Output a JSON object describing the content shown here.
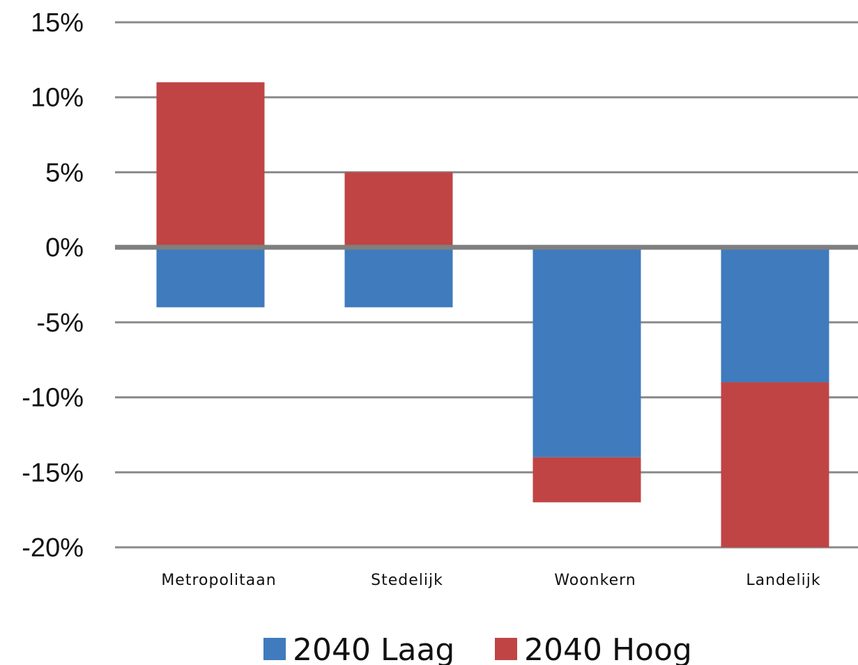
{
  "chart_data": {
    "type": "bar",
    "stacked": true,
    "categories": [
      "Metropolitaan",
      "Stedelijk",
      "Woonkern",
      "Landelijk"
    ],
    "series": [
      {
        "name": "2040 Laag",
        "color": "#3f7bbd",
        "values": [
          -4,
          -4,
          -14,
          -9
        ]
      },
      {
        "name": "2040 Hoog",
        "color": "#c04444",
        "values": [
          11,
          5,
          -3,
          -11
        ]
      }
    ],
    "ylim": [
      -20,
      15
    ],
    "yticks": [
      15,
      10,
      5,
      0,
      -5,
      -10,
      -15,
      -20
    ],
    "ytick_labels": [
      "15%",
      "10%",
      "5%",
      "0%",
      "-5%",
      "-10%",
      "-15%",
      "-20%"
    ],
    "title": "",
    "xlabel": "",
    "ylabel": "",
    "grid": true,
    "legend_position": "bottom"
  }
}
